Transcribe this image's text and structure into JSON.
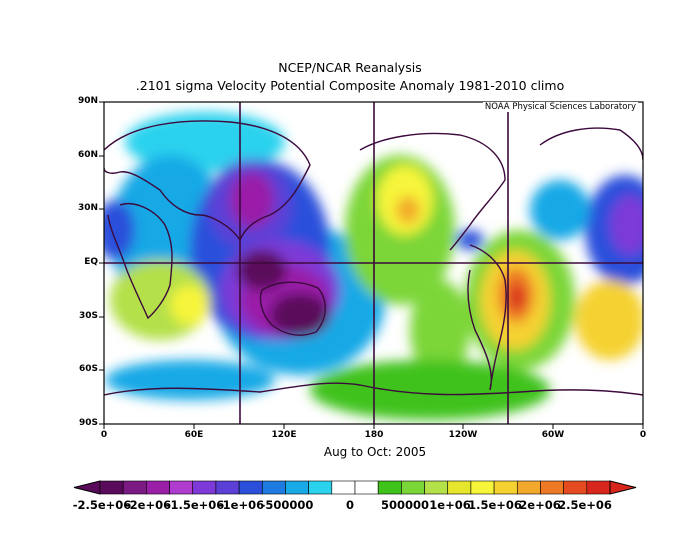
{
  "header": {
    "title": "NCEP/NCAR Reanalysis",
    "subtitle": ".2101 sigma Velocity Potential  Composite Anomaly 1981-2010 climo"
  },
  "map": {
    "credit": "NOAA Physical Sciences Laboratory",
    "period_label": "Aug to Oct: 2005",
    "projection": "cylindrical equidistant, 0 to 360 longitude, 90S to 90N",
    "lat_labels": [
      "90N",
      "60N",
      "30N",
      "EQ",
      "30S",
      "60S",
      "90S"
    ],
    "lon_labels": [
      "0",
      "60E",
      "120E",
      "180",
      "120W",
      "60W",
      "0"
    ],
    "reference_lines": {
      "longitudes_deg": [
        90,
        180,
        270
      ],
      "latitudes_deg": [
        0
      ]
    },
    "anomaly_regions": [
      {
        "label": "strong negative anomaly over Maritime Continent / Australia / Indonesia",
        "sign": "negative",
        "peak": -2500000.0
      },
      {
        "label": "negative anomaly over Southeast Asia / India",
        "sign": "negative",
        "peak": -1500000.0
      },
      {
        "label": "negative anomaly over Africa / Arabian Sea",
        "sign": "negative",
        "peak": -1500000.0
      },
      {
        "label": "positive anomaly over South America",
        "sign": "positive",
        "peak": 2500000.0
      },
      {
        "label": "positive anomaly over North Pacific",
        "sign": "positive",
        "peak": 1500000.0
      },
      {
        "label": "positive anomaly over South Atlantic / Southern Africa",
        "sign": "positive",
        "peak": 1500000.0
      }
    ]
  },
  "colorbar": {
    "labels": [
      "-2.5e+06",
      "-2e+06",
      "-1.5e+06",
      "-1e+06",
      "-500000",
      "0",
      "500000",
      "1e+06",
      "1.5e+06",
      "2e+06",
      "2.5e+06"
    ],
    "colors": [
      "#5a0a5a",
      "#7a1a82",
      "#9a1fa8",
      "#b03ccf",
      "#7d3ad8",
      "#5b3fd6",
      "#2c4fdb",
      "#1e7be0",
      "#19a9e6",
      "#2bd2ee",
      "#ffffff",
      "#ffffff",
      "#3fc21a",
      "#7bd637",
      "#b4e04a",
      "#e6e62c",
      "#f7f53a",
      "#f5d230",
      "#f2a92b",
      "#ee7a25",
      "#e64a1f",
      "#d8261d"
    ]
  }
}
